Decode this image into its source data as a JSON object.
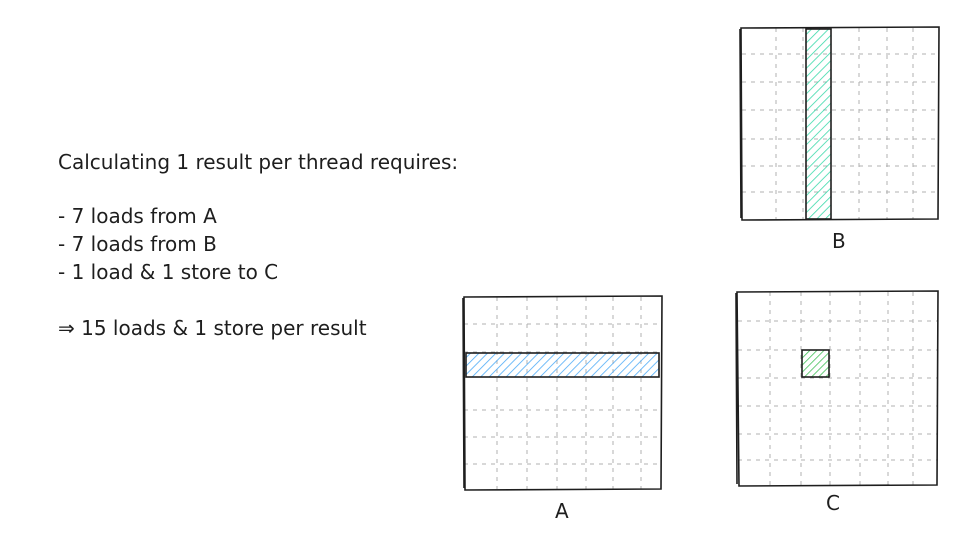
{
  "description_lines": [
    "Calculating 1 result per thread requires:",
    "- 7 loads from A",
    "- 7 loads from B",
    "- 1 load & 1 store to C",
    "⇒ 15 loads & 1 store per result"
  ],
  "matrices": {
    "A": {
      "label": "A",
      "highlight": "row",
      "highlight_color": "#4dabf7",
      "grid_rows": 7,
      "grid_cols": 7
    },
    "B": {
      "label": "B",
      "highlight": "column",
      "highlight_color": "#38d9a9",
      "grid_rows": 7,
      "grid_cols": 7
    },
    "C": {
      "label": "C",
      "highlight": "cell",
      "highlight_color": "#40c057",
      "grid_rows": 7,
      "grid_cols": 7
    }
  },
  "colors": {
    "stroke": "#1e1e1e",
    "grid": "#b0b0b0",
    "background": "#ffffff"
  }
}
